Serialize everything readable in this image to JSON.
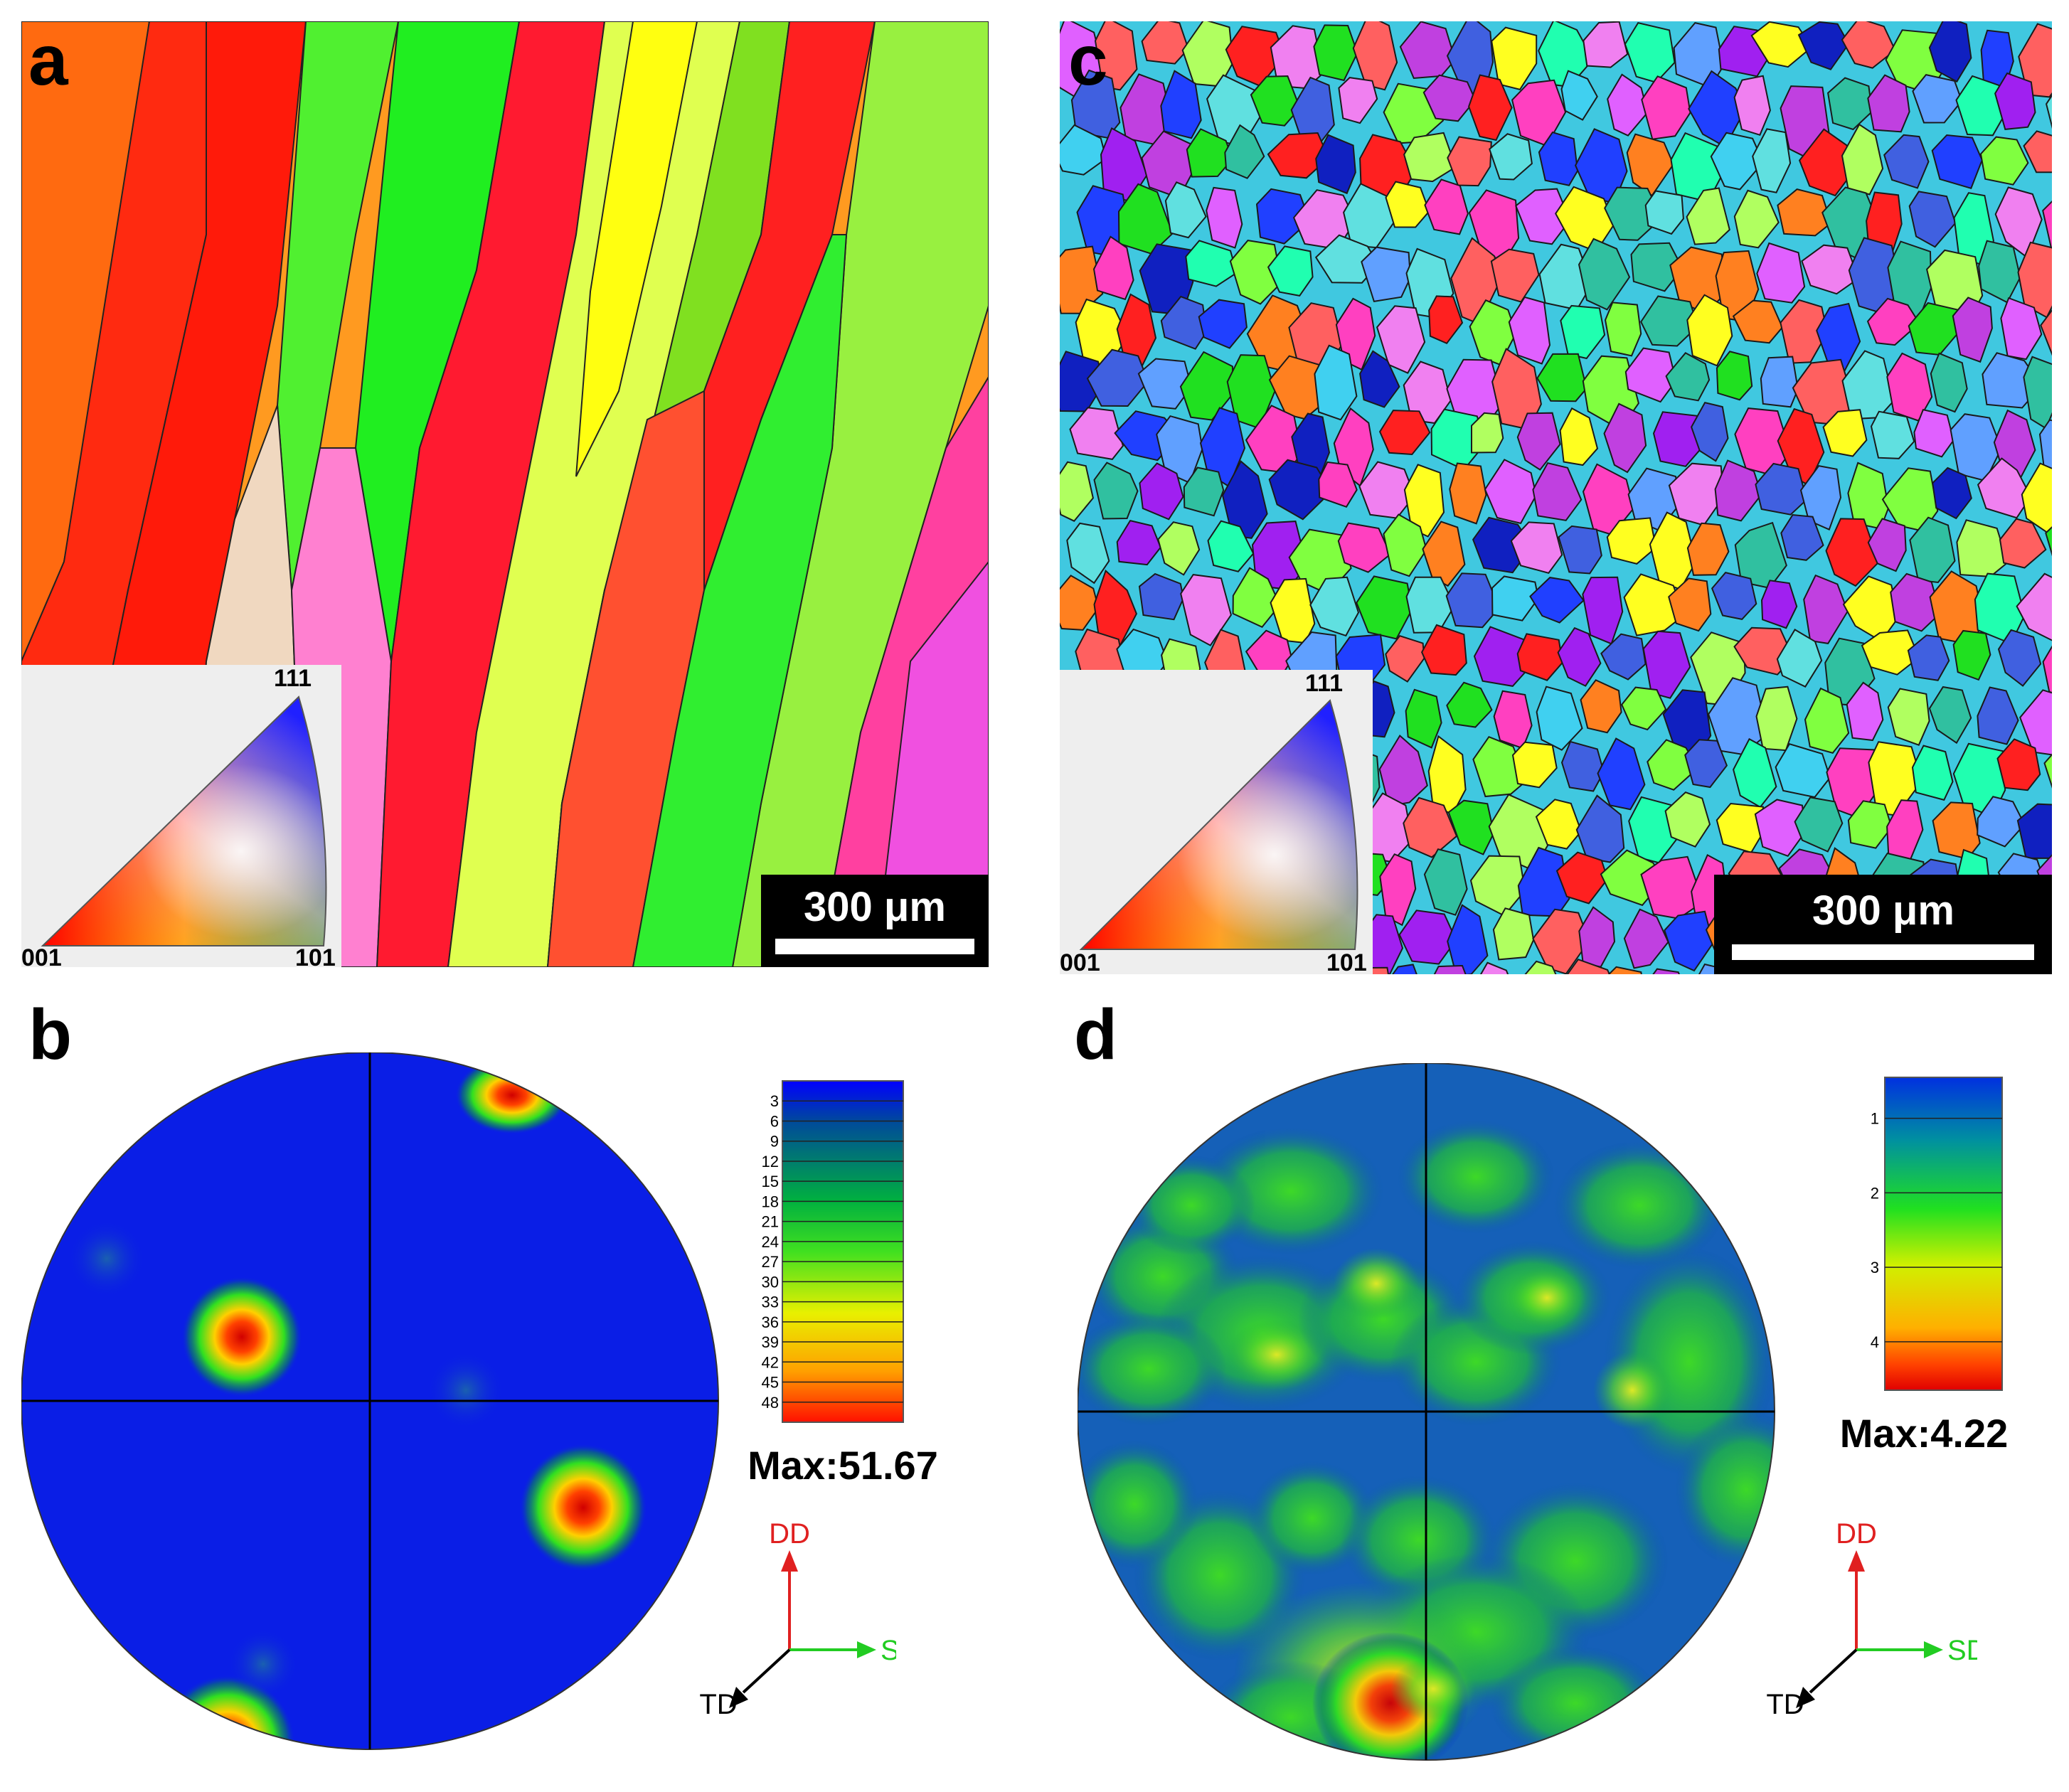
{
  "panels": {
    "a": {
      "label": "a",
      "scale_bar": "300 μm",
      "ipf_key": {
        "c001": "001",
        "c101": "101",
        "c111": "111"
      }
    },
    "b": {
      "label": "b",
      "legend_ticks": [
        "3",
        "6",
        "9",
        "12",
        "15",
        "18",
        "21",
        "24",
        "27",
        "30",
        "33",
        "36",
        "39",
        "42",
        "45",
        "48"
      ],
      "max_label": "Max:51.67",
      "axes": {
        "dd": "DD",
        "sd": "SD",
        "td": "TD"
      }
    },
    "c": {
      "label": "c",
      "scale_bar": "300 μm",
      "ipf_key": {
        "c001": "001",
        "c101": "101",
        "c111": "111"
      }
    },
    "d": {
      "label": "d",
      "legend_ticks": [
        "1",
        "2",
        "3",
        "4"
      ],
      "max_label": "Max:4.22",
      "axes": {
        "dd": "DD",
        "sd": "SD",
        "td": "TD"
      }
    }
  },
  "colors": {
    "dd_axis": "#e02020",
    "sd_axis": "#22cc22",
    "td_axis": "#000000",
    "pole_background": "#0a1ee6"
  }
}
